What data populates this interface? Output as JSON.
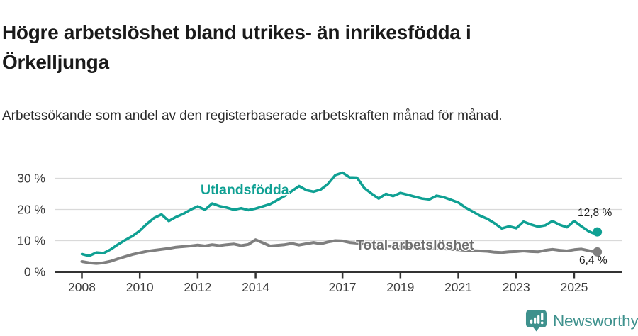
{
  "page": {
    "title_line1": "Högre arbetslöshet bland utrikes- än inrikesfödda i",
    "title_line2": "Örkelljunga",
    "subtitle": "Arbetssökande som andel av den registerbaserade arbetskraften månad för månad.",
    "brand": "Newsworthy"
  },
  "colors": {
    "accent_teal": "#0fa093",
    "series_gray": "#7f7f7f",
    "grid": "#d9d9d9",
    "axis": "#333333",
    "tick_text": "#3d3d3d",
    "text": "#1a1a1a",
    "brand_teal": "#3e918d"
  },
  "chart_data": {
    "type": "line",
    "title": "Högre arbetslöshet bland utrikes- än inrikesfödda i Örkelljunga",
    "subtitle": "Arbetssökande som andel av den registerbaserade arbetskraften månad för månad.",
    "xlabel": "",
    "ylabel": "",
    "grid": "horizontal",
    "legend_position": "inline-labels",
    "xlim": [
      2007.1,
      2026.6
    ],
    "ylim": [
      0,
      33
    ],
    "y_ticks": [
      0,
      10,
      20,
      30
    ],
    "y_tick_labels": [
      "0 %",
      "10 %",
      "20 %",
      "30 %"
    ],
    "x_ticks": [
      2008,
      2010,
      2012,
      2014,
      2017,
      2019,
      2021,
      2023,
      2025
    ],
    "x_tick_labels": [
      "2008",
      "2010",
      "2012",
      "2014",
      "2017",
      "2019",
      "2021",
      "2023",
      "2025"
    ],
    "x_unit": "year (monthly observations, approximated quarterly)",
    "x": [
      2008,
      2008.25,
      2008.5,
      2008.75,
      2009,
      2009.25,
      2009.5,
      2009.75,
      2010,
      2010.25,
      2010.5,
      2010.75,
      2011,
      2011.25,
      2011.5,
      2011.75,
      2012,
      2012.25,
      2012.5,
      2012.75,
      2013,
      2013.25,
      2013.5,
      2013.75,
      2014,
      2014.25,
      2014.5,
      2014.75,
      2015,
      2015.25,
      2015.5,
      2015.75,
      2016,
      2016.25,
      2016.5,
      2016.75,
      2017,
      2017.25,
      2017.5,
      2017.75,
      2018,
      2018.25,
      2018.5,
      2018.75,
      2019,
      2019.25,
      2019.5,
      2019.75,
      2020,
      2020.25,
      2020.5,
      2020.75,
      2021,
      2021.25,
      2021.5,
      2021.75,
      2022,
      2022.25,
      2022.5,
      2022.75,
      2023,
      2023.25,
      2023.5,
      2023.75,
      2024,
      2024.25,
      2024.5,
      2024.75,
      2025,
      2025.25,
      2025.5,
      2025.65,
      2025.8
    ],
    "series": [
      {
        "name": "Utlandsfödda",
        "color": "#0fa093",
        "end_value": 12.8,
        "end_label": "12,8 %",
        "values": [
          5.7,
          5.1,
          6.2,
          6.0,
          7.2,
          8.8,
          10.2,
          11.5,
          13.2,
          15.4,
          17.3,
          18.4,
          16.3,
          17.6,
          18.6,
          19.9,
          21.0,
          19.9,
          21.9,
          21.1,
          20.6,
          19.9,
          20.4,
          19.8,
          20.3,
          21.0,
          21.7,
          23.0,
          24.3,
          25.9,
          27.5,
          26.2,
          25.7,
          26.4,
          28.2,
          31.0,
          31.8,
          30.3,
          30.2,
          26.9,
          25.1,
          23.5,
          25.0,
          24.3,
          25.3,
          24.7,
          24.1,
          23.5,
          23.2,
          24.4,
          23.9,
          23.1,
          22.2,
          20.6,
          19.3,
          18.0,
          17.0,
          15.6,
          13.9,
          14.6,
          14.0,
          16.1,
          15.2,
          14.5,
          14.9,
          16.3,
          15.1,
          14.3,
          16.3,
          14.6,
          13.0,
          12.4,
          12.8
        ]
      },
      {
        "name": "Total arbetslöshet",
        "color": "#7f7f7f",
        "end_value": 6.4,
        "end_label": "6,4 %",
        "values": [
          3.3,
          2.9,
          2.7,
          2.9,
          3.4,
          4.2,
          4.9,
          5.6,
          6.1,
          6.6,
          6.9,
          7.2,
          7.5,
          7.9,
          8.1,
          8.3,
          8.6,
          8.3,
          8.7,
          8.4,
          8.7,
          8.9,
          8.4,
          8.8,
          10.3,
          9.3,
          8.3,
          8.5,
          8.7,
          9.1,
          8.6,
          9.0,
          9.4,
          9.0,
          9.6,
          10.0,
          9.9,
          9.4,
          9.2,
          8.9,
          8.7,
          8.5,
          8.3,
          8.1,
          8.0,
          7.8,
          7.7,
          7.5,
          7.4,
          7.6,
          7.4,
          7.2,
          7.1,
          6.9,
          6.8,
          6.7,
          6.6,
          6.3,
          6.2,
          6.4,
          6.5,
          6.7,
          6.5,
          6.4,
          6.9,
          7.2,
          6.9,
          6.7,
          7.1,
          7.3,
          6.8,
          6.5,
          6.4
        ]
      }
    ]
  }
}
